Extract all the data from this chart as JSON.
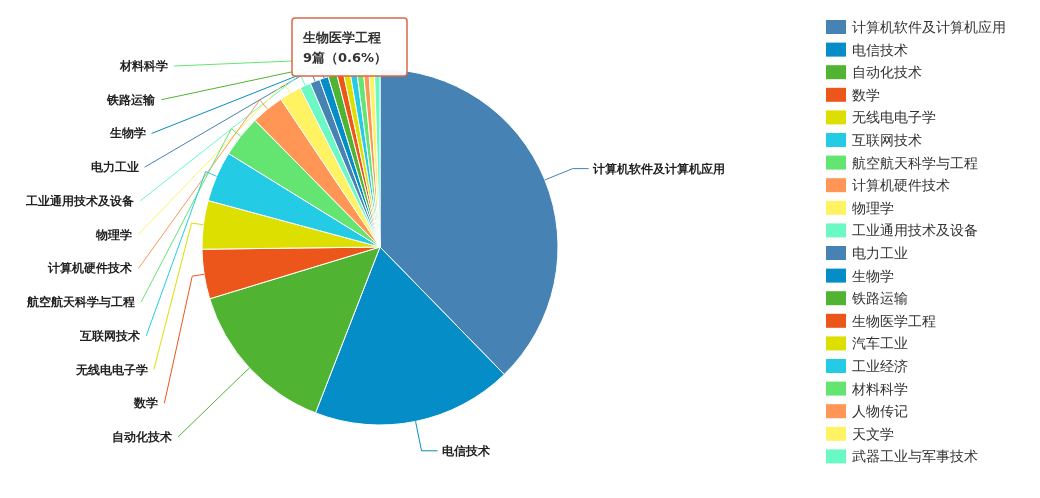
{
  "chart_data": {
    "type": "pie",
    "categories": [
      "计算机软件及计算机应用",
      "电信技术",
      "自动化技术",
      "数学",
      "无线电电子学",
      "互联网技术",
      "航空航天科学与工程",
      "计算机硬件技术",
      "物理学",
      "工业通用技术及设备",
      "电力工业",
      "生物学",
      "铁路运输",
      "生物医学工程",
      "汽车工业",
      "工业经济",
      "材料科学",
      "人物传记",
      "天文学",
      "武器工业与军事技术"
    ],
    "values": [
      37.7,
      18.2,
      14.4,
      4.5,
      4.4,
      4.6,
      3.8,
      3.0,
      2.0,
      1.0,
      0.9,
      0.8,
      0.8,
      0.6,
      0.6,
      0.6,
      0.6,
      0.5,
      0.5,
      0.5
    ],
    "colors": [
      "#4682b4",
      "#058dc7",
      "#50b432",
      "#ed561b",
      "#dddf00",
      "#24cbe5",
      "#64e572",
      "#ff9655",
      "#fff263",
      "#6af9c4",
      "#4682b4",
      "#058dc7",
      "#50b432",
      "#ed561b",
      "#dddf00",
      "#24cbe5",
      "#64e572",
      "#ff9655",
      "#fff263",
      "#6af9c4"
    ],
    "annotations": [
      {
        "text": "计算机软件及计算机应用",
        "x": "计算机软件及计算机应用"
      },
      {
        "text": "电信技术",
        "x": "电信技术"
      },
      {
        "text": "自动化技术",
        "x": "自动化技术"
      },
      {
        "text": "数学",
        "x": "数学"
      },
      {
        "text": "无线电电子学",
        "x": "无线电电子学"
      },
      {
        "text": "互联网技术",
        "x": "互联网技术"
      },
      {
        "text": "航空航天科学与工程",
        "x": "航空航天科学与工程"
      },
      {
        "text": "计算机硬件技术",
        "x": "计算机硬件技术"
      },
      {
        "text": "物理学",
        "x": "物理学"
      },
      {
        "text": "工业通用技术及设备",
        "x": "工业通用技术及设备"
      },
      {
        "text": "电力工业",
        "x": "电力工业"
      },
      {
        "text": "生物学",
        "x": "生物学"
      },
      {
        "text": "铁路运输",
        "x": "铁路运输"
      },
      {
        "text": "材料科学",
        "x": "材料科学"
      },
      "生物医学工程\n9篇（0.6%）"
    ],
    "legend": "right"
  }
}
